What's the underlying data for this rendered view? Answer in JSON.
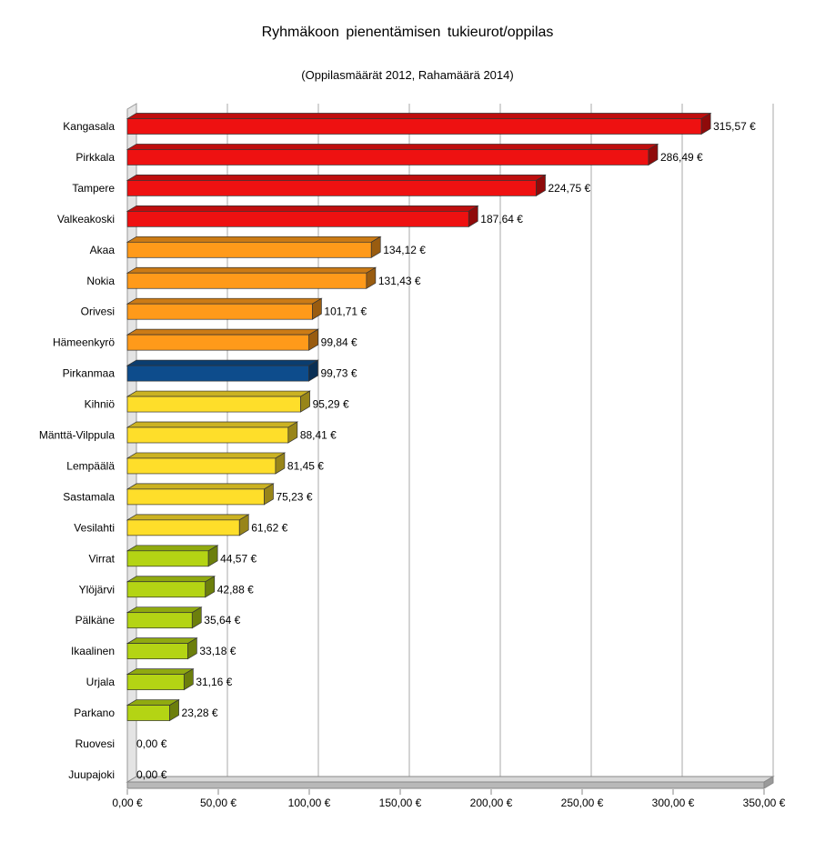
{
  "chart_data": {
    "type": "bar",
    "orientation": "horizontal",
    "title": "Ryhmäkoon  pienentämisen  tukieurot/oppilas",
    "subtitle": "(Oppilasmäärät 2012, Rahamäärä 2014)",
    "xlim": [
      0,
      350
    ],
    "grid": true,
    "legend": "none",
    "x_tick_labels": [
      "0,00 €",
      "50,00 €",
      "100,00 €",
      "150,00 €",
      "200,00 €",
      "250,00 €",
      "300,00 €",
      "350,00 €"
    ],
    "categories": [
      "Kangasala",
      "Pirkkala",
      "Tampere",
      "Valkeakoski",
      "Akaa",
      "Nokia",
      "Orivesi",
      "Hämeenkyrö",
      "Pirkanmaa",
      "Kihniö",
      "Mänttä-Vilppula",
      "Lempäälä",
      "Sastamala",
      "Vesilahti",
      "Virrat",
      "Ylöjärvi",
      "Pälkäne",
      "Ikaalinen",
      "Urjala",
      "Parkano",
      "Ruovesi",
      "Juupajoki"
    ],
    "values": [
      315.57,
      286.49,
      224.75,
      187.64,
      134.12,
      131.43,
      101.71,
      99.84,
      99.73,
      95.29,
      88.41,
      81.45,
      75.23,
      61.62,
      44.57,
      42.88,
      35.64,
      33.18,
      31.16,
      23.28,
      0.0,
      0.0
    ],
    "value_labels": [
      "315,57 €",
      "286,49 €",
      "224,75 €",
      "187,64 €",
      "134,12 €",
      "131,43 €",
      "101,71 €",
      "99,84 €",
      "99,73 €",
      "95,29 €",
      "88,41 €",
      "81,45 €",
      "75,23 €",
      "61,62 €",
      "44,57 €",
      "42,88 €",
      "35,64 €",
      "33,18 €",
      "31,16 €",
      "23,28 €",
      "0,00 €",
      "0,00 €"
    ],
    "bar_colors": [
      "#ee1111",
      "#ee1111",
      "#ee1111",
      "#ee1111",
      "#ff9a1a",
      "#ff9a1a",
      "#ff9a1a",
      "#ff9a1a",
      "#0d4c8c",
      "#fede2a",
      "#fede2a",
      "#fede2a",
      "#fede2a",
      "#fede2a",
      "#b4d414",
      "#b4d414",
      "#b4d414",
      "#b4d414",
      "#b4d414",
      "#b4d414",
      "#b4d414",
      "#b4d414"
    ]
  }
}
